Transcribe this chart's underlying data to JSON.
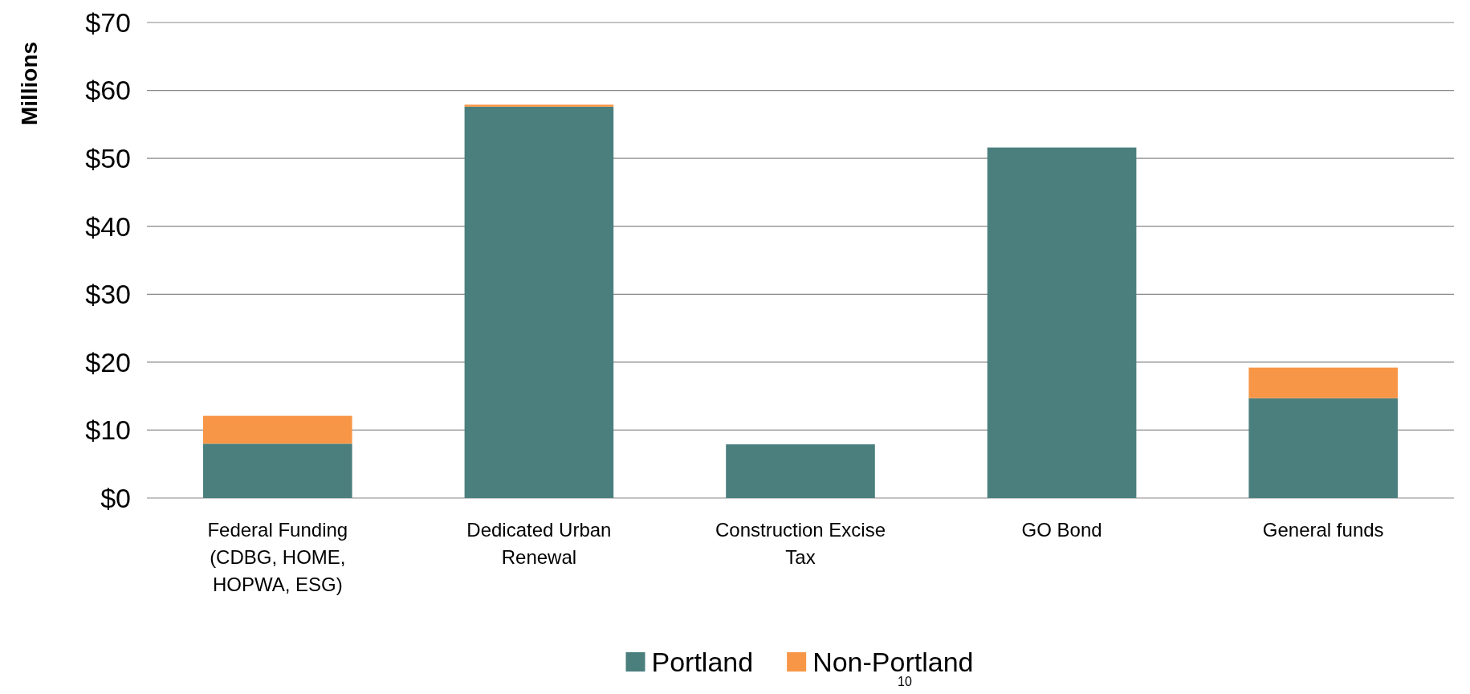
{
  "chart_data": {
    "type": "bar",
    "stacked": true,
    "ylabel": "Millions",
    "categories": [
      "Federal Funding (CDBG, HOME, HOPWA, ESG)",
      "Dedicated Urban Renewal",
      "Construction Excise Tax",
      "GO Bond",
      "General funds"
    ],
    "series": [
      {
        "name": "Portland",
        "color": "#4a7f7e",
        "values": [
          8.0,
          57.6,
          7.9,
          51.6,
          14.7
        ]
      },
      {
        "name": "Non-Portland",
        "color": "#f79646",
        "values": [
          4.1,
          0.3,
          0,
          0,
          4.5
        ]
      }
    ],
    "ylim": [
      0,
      70
    ],
    "yticks": [
      {
        "value": 0,
        "label": "$0"
      },
      {
        "value": 10,
        "label": "$10"
      },
      {
        "value": 20,
        "label": "$20"
      },
      {
        "value": 30,
        "label": "$30"
      },
      {
        "value": 40,
        "label": "$40"
      },
      {
        "value": 50,
        "label": "$50"
      },
      {
        "value": 60,
        "label": "$60"
      },
      {
        "value": 70,
        "label": "$70"
      }
    ],
    "grid": "y",
    "legend": "bottom",
    "annotations": [
      "10"
    ]
  }
}
